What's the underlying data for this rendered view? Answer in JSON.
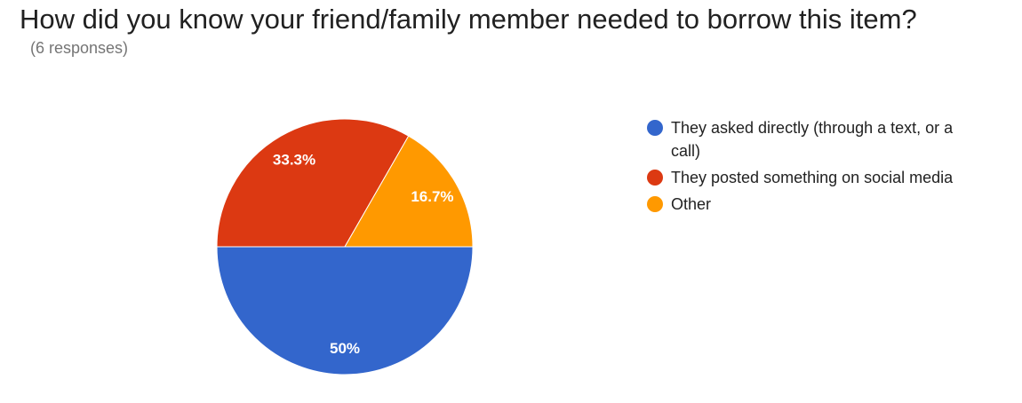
{
  "title": "How did you know your friend/family member needed to borrow this item?",
  "subtitle": "(6 responses)",
  "chart_data": {
    "type": "pie",
    "title": "How did you know your friend/family member needed to borrow this item?",
    "subtitle": "(6 responses)",
    "legend_position": "right",
    "series": [
      {
        "name": "They asked directly (through a text, or a call)",
        "value": 50,
        "label": "50%",
        "color": "#3366cc"
      },
      {
        "name": "They posted something on social media",
        "value": 33.3,
        "label": "33.3%",
        "color": "#dc3912"
      },
      {
        "name": "Other",
        "value": 16.7,
        "label": "16.7%",
        "color": "#ff9900"
      }
    ]
  }
}
